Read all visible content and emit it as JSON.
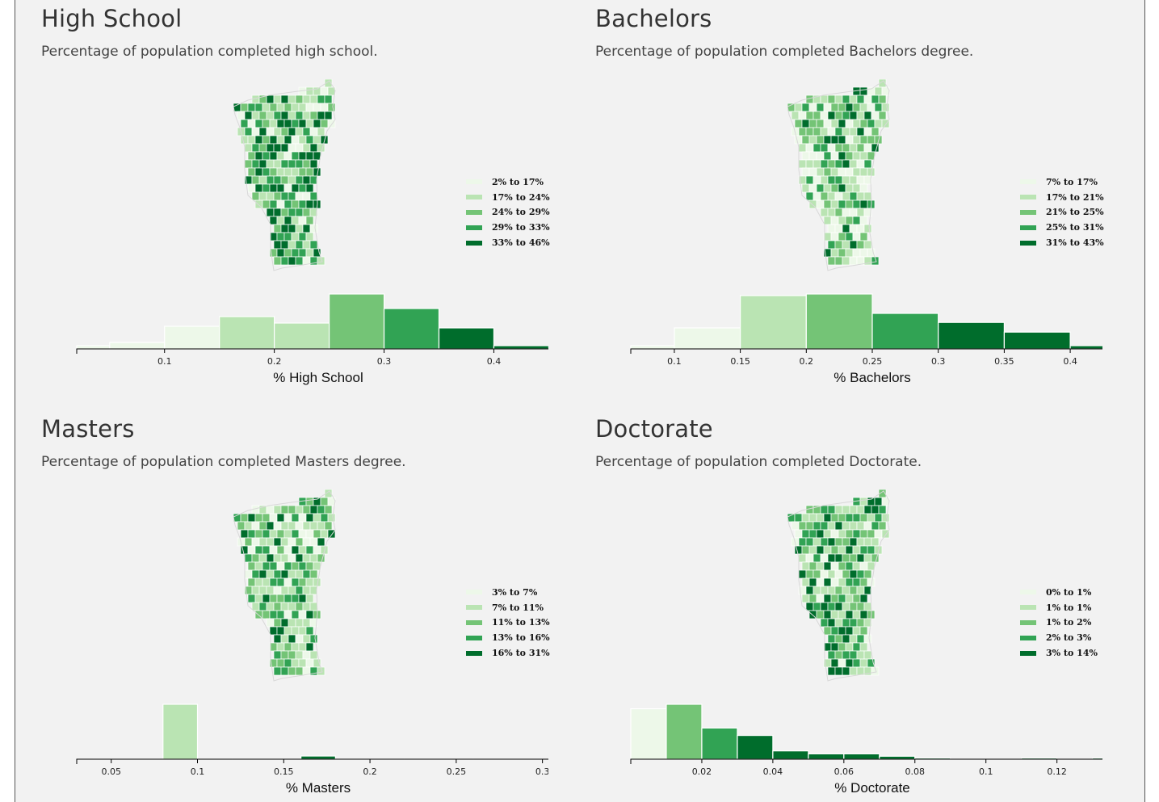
{
  "panels": [
    {
      "title": "High School",
      "subtitle": "Percentage of population completed high school.",
      "legend": [
        "2% to 17%",
        "17% to 24%",
        "24% to 29%",
        "29% to 33%",
        "33% to 46%"
      ]
    },
    {
      "title": "Bachelors",
      "subtitle": "Percentage of population completed Bachelors degree.",
      "legend": [
        "7% to 17%",
        "17% to 21%",
        "21% to 25%",
        "25% to 31%",
        "31% to 43%"
      ]
    },
    {
      "title": "Masters",
      "subtitle": "Percentage of population completed Masters degree.",
      "legend": [
        "3% to 7%",
        "7% to 11%",
        "11% to 13%",
        "13% to 16%",
        "16% to 31%"
      ]
    },
    {
      "title": "Doctorate",
      "subtitle": "Percentage of population completed Doctorate.",
      "legend": [
        "0% to 1%",
        "1% to 1%",
        "1% to 2%",
        "2% to 3%",
        "3% to 14%"
      ]
    }
  ],
  "colors": {
    "palette": [
      "#edf8e9",
      "#bae4b3",
      "#74c476",
      "#31a354",
      "#006d2c"
    ],
    "background": "#f2f2f2"
  },
  "chart_data": [
    {
      "type": "bar",
      "title": "High School",
      "xlabel": "% High School",
      "xlim": [
        0.02,
        0.46
      ],
      "xticks": [
        0.1,
        0.2,
        0.3,
        0.4
      ],
      "tick_labels": [
        "0.1",
        "0.2",
        "0.3",
        "0.4"
      ],
      "bins": [
        {
          "x0": 0.02,
          "x1": 0.05,
          "count": 1,
          "color": "#edf8e9"
        },
        {
          "x0": 0.05,
          "x1": 0.1,
          "count": 2,
          "color": "#edf8e9"
        },
        {
          "x0": 0.1,
          "x1": 0.15,
          "count": 7,
          "color": "#edf8e9"
        },
        {
          "x0": 0.15,
          "x1": 0.2,
          "count": 10,
          "color": "#bae4b3"
        },
        {
          "x0": 0.2,
          "x1": 0.25,
          "count": 8,
          "color": "#bae4b3"
        },
        {
          "x0": 0.25,
          "x1": 0.3,
          "count": 17,
          "color": "#74c476"
        },
        {
          "x0": 0.3,
          "x1": 0.35,
          "count": 12.5,
          "color": "#31a354"
        },
        {
          "x0": 0.35,
          "x1": 0.4,
          "count": 6.5,
          "color": "#006d2c"
        },
        {
          "x0": 0.4,
          "x1": 0.45,
          "count": 1,
          "color": "#006d2c"
        }
      ]
    },
    {
      "type": "bar",
      "title": "Bachelors",
      "xlabel": "% Bachelors",
      "xlim": [
        0.067,
        0.433
      ],
      "xticks": [
        0.1,
        0.15,
        0.2,
        0.25,
        0.3,
        0.35,
        0.4
      ],
      "tick_labels": [
        "0.1",
        "0.15",
        "0.2",
        "0.25",
        "0.3",
        "0.35",
        "0.4"
      ],
      "bins": [
        {
          "x0": 0.067,
          "x1": 0.1,
          "count": 1,
          "color": "#edf8e9"
        },
        {
          "x0": 0.1,
          "x1": 0.15,
          "count": 6.5,
          "color": "#edf8e9"
        },
        {
          "x0": 0.15,
          "x1": 0.2,
          "count": 16.5,
          "color": "#bae4b3"
        },
        {
          "x0": 0.2,
          "x1": 0.25,
          "count": 17,
          "color": "#74c476"
        },
        {
          "x0": 0.25,
          "x1": 0.3,
          "count": 11,
          "color": "#31a354"
        },
        {
          "x0": 0.3,
          "x1": 0.35,
          "count": 8.2,
          "color": "#006d2c"
        },
        {
          "x0": 0.35,
          "x1": 0.4,
          "count": 5.2,
          "color": "#006d2c"
        },
        {
          "x0": 0.4,
          "x1": 0.433,
          "count": 1,
          "color": "#006d2c"
        }
      ]
    },
    {
      "type": "bar",
      "title": "Masters",
      "xlabel": "% Masters",
      "xlim": [
        0.03,
        0.31
      ],
      "xticks": [
        0.05,
        0.1,
        0.15,
        0.2,
        0.25,
        0.3
      ],
      "tick_labels": [
        "0.05",
        "0.1",
        "0.15",
        "0.2",
        "0.25",
        "0.3"
      ],
      "bins": [
        {
          "x0": 0.03,
          "x1": 0.04,
          "count": 1,
          "color": "#edf8e9"
        },
        {
          "x0": 0.04,
          "x1": 0.06,
          "count": 5,
          "color": "#edf8e9"
        },
        {
          "x0": 0.06,
          "x1": 0.08,
          "count": 8.5,
          "color": "#edf8e9"
        },
        {
          "x0": 0.08,
          "x1": 0.1,
          "count": 6932,
          "color": "#bae4b3"
        },
        {
          "x0": 0.1,
          "x1": 0.12,
          "count": 11.5,
          "color": "#74c476"
        },
        {
          "x0": 0.12,
          "x1": 0.14,
          "count": 9.5,
          "color": "#31a354"
        },
        {
          "x0": 0.14,
          "x1": 0.16,
          "count": 7.5,
          "color": "#31a354"
        },
        {
          "x0": 0.16,
          "x1": 0.18,
          "count": 400,
          "color": "#006d2c"
        },
        {
          "x0": 0.18,
          "x1": 0.2,
          "count": 3.2,
          "color": "#006d2c"
        },
        {
          "x0": 0.2,
          "x1": 0.22,
          "count": 3.0,
          "color": "#006d2c"
        },
        {
          "x0": 0.22,
          "x1": 0.24,
          "count": 0.8,
          "color": "#006d2c"
        },
        {
          "x0": 0.24,
          "x1": 0.26,
          "count": 1.5,
          "color": "#006d2c"
        },
        {
          "x0": 0.26,
          "x1": 0.28,
          "count": 0.4,
          "color": "#006d2c"
        },
        {
          "x0": 0.28,
          "x1": 0.31,
          "count": 0.4,
          "color": "#006d2c"
        }
      ]
    },
    {
      "type": "bar",
      "title": "Doctorate",
      "xlabel": "% Doctorate",
      "xlim": [
        0,
        0.136
      ],
      "xticks": [
        0.02,
        0.04,
        0.06,
        0.08,
        0.1,
        0.12
      ],
      "tick_labels": [
        "0.02",
        "0.04",
        "0.06",
        "0.08",
        "0.1",
        "0.12"
      ],
      "bins": [
        {
          "x0": 0.0,
          "x1": 0.01,
          "count": 17,
          "color": "#edf8e9"
        },
        {
          "x0": 0.01,
          "x1": 0.02,
          "count": 18.5,
          "color": "#74c476"
        },
        {
          "x0": 0.02,
          "x1": 0.03,
          "count": 10.5,
          "color": "#31a354"
        },
        {
          "x0": 0.03,
          "x1": 0.04,
          "count": 8,
          "color": "#006d2c"
        },
        {
          "x0": 0.04,
          "x1": 0.05,
          "count": 2.8,
          "color": "#006d2c"
        },
        {
          "x0": 0.05,
          "x1": 0.06,
          "count": 1.8,
          "color": "#006d2c"
        },
        {
          "x0": 0.06,
          "x1": 0.07,
          "count": 1.8,
          "color": "#006d2c"
        },
        {
          "x0": 0.07,
          "x1": 0.08,
          "count": 1.0,
          "color": "#006d2c"
        },
        {
          "x0": 0.08,
          "x1": 0.09,
          "count": 0.4,
          "color": "#006d2c"
        },
        {
          "x0": 0.11,
          "x1": 0.12,
          "count": 0.4,
          "color": "#006d2c"
        },
        {
          "x0": 0.13,
          "x1": 0.136,
          "count": 0.4,
          "color": "#006d2c"
        }
      ]
    }
  ]
}
